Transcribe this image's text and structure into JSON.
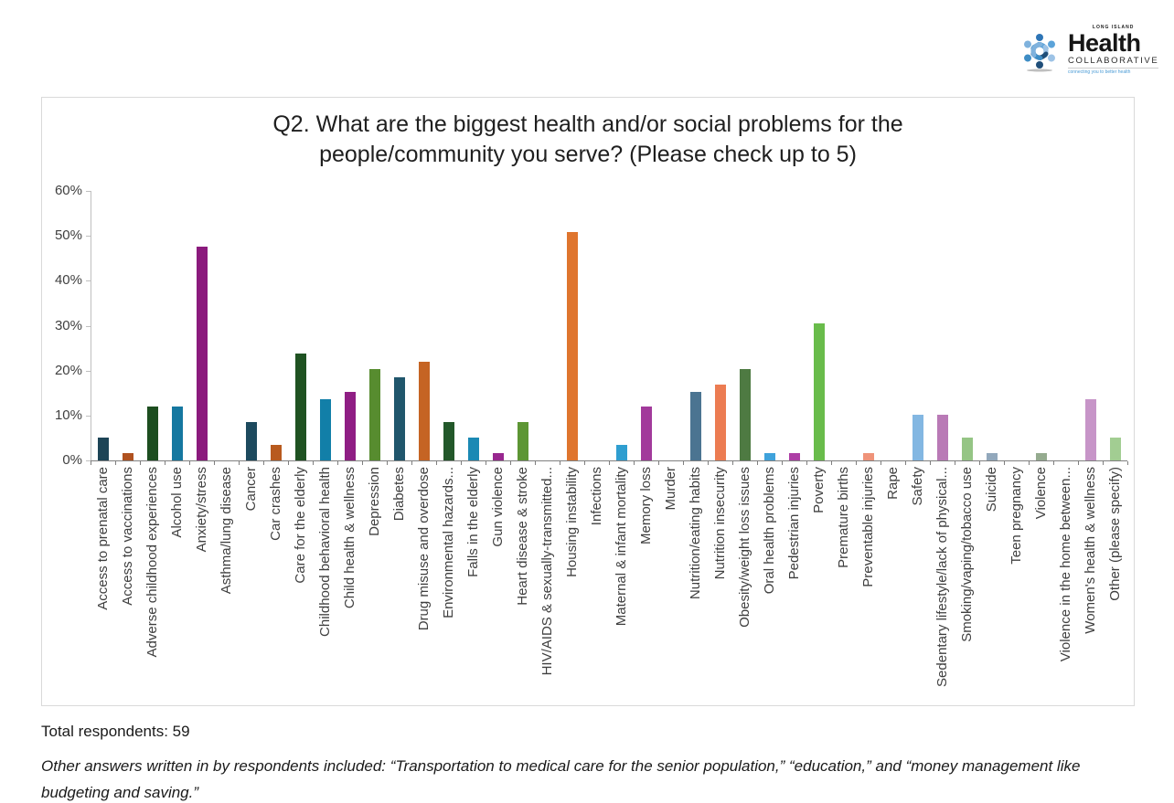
{
  "brand": {
    "region": "LONG ISLAND",
    "name": "Health",
    "suffix": "COLLABORATIVE",
    "tagline": "connecting you to better health"
  },
  "chart_data": {
    "type": "bar",
    "title": "Q2. What are the biggest health and/or social problems for the people/community you serve? (Please check up to 5)",
    "xlabel": "",
    "ylabel": "",
    "ylim": [
      0,
      60
    ],
    "ytick_labels": [
      "0%",
      "10%",
      "20%",
      "30%",
      "40%",
      "50%",
      "60%"
    ],
    "grid": false,
    "legend": false,
    "categories": [
      "Access to prenatal care",
      "Access to vaccinations",
      "Adverse childhood experiences",
      "Alcohol use",
      "Anxiety/stress",
      "Asthma/lung disease",
      "Cancer",
      "Car crashes",
      "Care for the elderly",
      "Childhood behavioral health",
      "Child health & wellness",
      "Depression",
      "Diabetes",
      "Drug misuse and overdose",
      "Environmental hazards...",
      "Falls in the elderly",
      "Gun violence",
      "Heart disease & stroke",
      "HIV/AIDS & sexually-transmitted...",
      "Housing instability",
      "Infections",
      "Maternal & infant mortality",
      "Memory loss",
      "Murder",
      "Nutrition/eating habits",
      "Nutrition insecurity",
      "Obesity/weight loss issues",
      "Oral health problems",
      "Pedestrian injuries",
      "Poverty",
      "Premature births",
      "Preventable injuries",
      "Rape",
      "Safety",
      "Sedentary lifestyle/lack of physical...",
      "Smoking/vaping/tobacco use",
      "Suicide",
      "Teen pregnancy",
      "Violence",
      "Violence in the home between...",
      "Women's health & wellness",
      "Other (please specify)"
    ],
    "values": [
      5.1,
      1.7,
      11.9,
      11.9,
      47.5,
      0,
      8.5,
      3.4,
      23.7,
      13.6,
      15.3,
      20.3,
      18.6,
      22.0,
      8.5,
      5.1,
      1.7,
      8.5,
      0,
      50.8,
      0,
      3.4,
      11.9,
      0,
      15.3,
      16.9,
      20.3,
      1.7,
      1.7,
      30.5,
      0,
      1.7,
      0,
      10.2,
      10.2,
      5.1,
      1.7,
      0,
      1.7,
      0,
      13.6,
      5.1
    ],
    "bar_colors": [
      "#1d4456",
      "#b05220",
      "#1d4e20",
      "#1578a0",
      "#8b1a7d",
      "#4e7b2c",
      "#1d4a5e",
      "#b85a1e",
      "#1f5222",
      "#127fa8",
      "#8f1e84",
      "#578c2f",
      "#20566c",
      "#c56424",
      "#23582a",
      "#1b89b4",
      "#98278f",
      "#5d9634",
      "#2f6378",
      "#df752e",
      "#31663a",
      "#2f9ed0",
      "#a23a9b",
      "#63a83e",
      "#4b7491",
      "#ec7c52",
      "#4e7a42",
      "#3fa2db",
      "#ad3ea5",
      "#69bc4b",
      "#5f86a5",
      "#ef9379",
      "#6e9a62",
      "#83b7e2",
      "#b97ab6",
      "#95c585",
      "#92a8bc",
      "#f2ac97",
      "#95ab8f",
      "#97c6e8",
      "#c795c8",
      "#a2cd92"
    ],
    "axis_color": "#7f7f7f",
    "y_axis_color": "#bfbfbf"
  },
  "footer": {
    "respondents_label": "Total respondents: 59",
    "note": "Other answers written in by respondents included: “Transportation to medical care for the senior population,” “education,” and “money management like budgeting and saving.”"
  }
}
